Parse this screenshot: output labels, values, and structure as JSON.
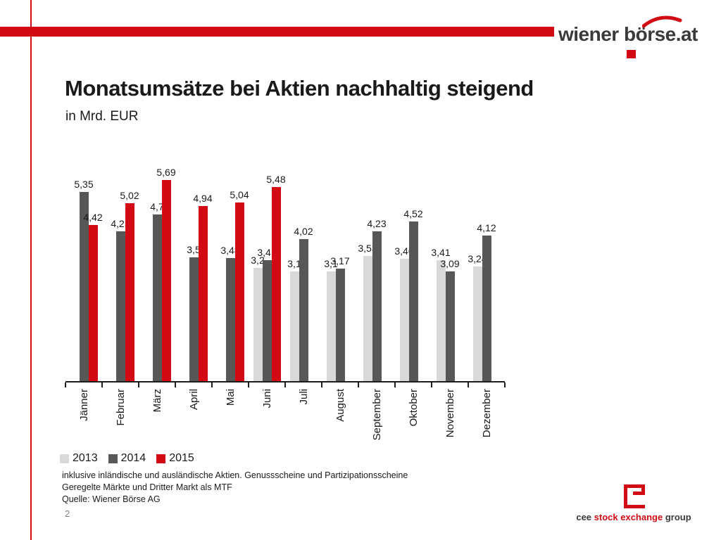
{
  "page": {
    "number": "2"
  },
  "colors": {
    "red": "#d20a14",
    "gray_light": "#d9d9d9",
    "gray_dark": "#575756",
    "logo_text": "#3a3a39",
    "axis": "#1d1d1b"
  },
  "brand": {
    "logo_text": "wiener börse.at"
  },
  "header": {
    "title": "Monatsumsätze bei Aktien nachhaltig steigend",
    "subtitle": "in Mrd. EUR"
  },
  "chart_data": {
    "type": "bar",
    "title": "Monatsumsätze bei Aktien nachhaltig steigend",
    "unit": "Mrd. EUR",
    "ylim": [
      0,
      6
    ],
    "grid": false,
    "legend_position": "bottom-left",
    "categories": [
      "Jänner",
      "Februar",
      "März",
      "April",
      "Mai",
      "Juni",
      "Juli",
      "August",
      "September",
      "Oktober",
      "November",
      "Dezember"
    ],
    "series": [
      {
        "name": "2013",
        "color": "#d9d9d9",
        "values": [
          null,
          null,
          null,
          null,
          null,
          3.2,
          3.1,
          3.1,
          3.53,
          3.46,
          3.41,
          3.24
        ],
        "labels": [
          "",
          "",
          "",
          "",
          "",
          "3,2",
          "3,1",
          "3,1",
          "3,53",
          "3,46",
          "3,41",
          "3,24"
        ]
      },
      {
        "name": "2014",
        "color": "#575756",
        "values": [
          5.35,
          4.23,
          4.7,
          3.5,
          3.48,
          3.41,
          4.02,
          3.17,
          4.23,
          4.52,
          3.09,
          4.12
        ],
        "labels": [
          "5,35",
          "4,23",
          "4,7",
          "3,5",
          "3,48",
          "3,41",
          "4,02",
          "3,17",
          "4,23",
          "4,52",
          "3,09",
          "4,12"
        ]
      },
      {
        "name": "2015",
        "color": "#d20a14",
        "values": [
          4.42,
          5.02,
          5.69,
          4.94,
          5.04,
          5.48,
          null,
          null,
          null,
          null,
          null,
          null
        ],
        "labels": [
          "4,42",
          "5,02",
          "5,69",
          "4,94",
          "5,04",
          "5,48",
          "",
          "",
          "",
          "",
          "",
          ""
        ]
      }
    ]
  },
  "legend": {
    "items": [
      {
        "label": "2013",
        "color": "#d9d9d9"
      },
      {
        "label": "2014",
        "color": "#575756"
      },
      {
        "label": "2015",
        "color": "#d20a14"
      }
    ]
  },
  "footnotes": [
    "inklusive inländische und ausländische Aktien. Genussscheine und Partizipationsscheine",
    "Geregelte Märkte und Dritter Markt als MTF",
    "Quelle: Wiener Börse AG"
  ],
  "footer_logo": {
    "cee": "cee ",
    "stock_exchange": "stock exchange",
    "group": " group"
  }
}
